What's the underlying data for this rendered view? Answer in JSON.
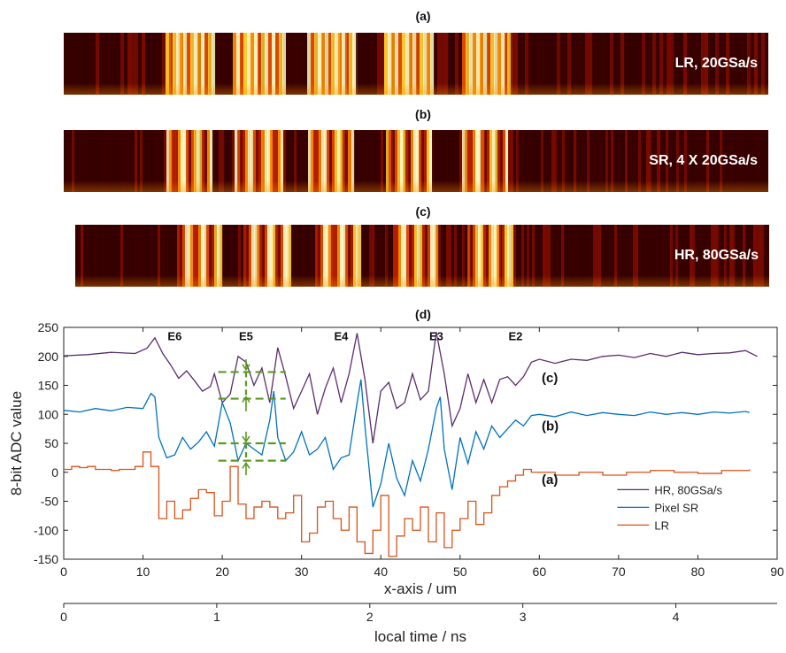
{
  "panels": [
    {
      "label": "(a)",
      "text": "LR, 20GSa/s",
      "blocky": true
    },
    {
      "label": "(b)",
      "text": "SR, 4 X 20GSa/s",
      "blocky": false
    },
    {
      "label": "(c)",
      "text": "HR, 80GSa/s",
      "blocky": false
    }
  ],
  "panel_d_label": "(d)",
  "colors": {
    "hr": "#5b2c6f",
    "sr": "#0072bd",
    "lr": "#d95319",
    "annotation": "#5a9a1e"
  },
  "chart_data": {
    "type": "line",
    "xlabel": "x-axis / um",
    "ylabel": "8-bit ADC value",
    "xlim": [
      0,
      90
    ],
    "ylim": [
      -150,
      250
    ],
    "xticks": [
      "0",
      "10",
      "20",
      "30",
      "40",
      "50",
      "60",
      "70",
      "80",
      "90"
    ],
    "yticks": [
      "-150",
      "-100",
      "-50",
      "0",
      "50",
      "100",
      "150",
      "200",
      "250"
    ],
    "secondary_axis": {
      "label": "local time / ns",
      "ticks": [
        "0",
        "1",
        "2",
        "3",
        "4"
      ]
    },
    "region_labels": [
      "E6",
      "E5",
      "E4",
      "E3",
      "E2"
    ],
    "curve_labels": [
      "(c)",
      "(b)",
      "(a)"
    ],
    "legend_position": "bottom-right",
    "series": [
      {
        "name": "HR, 80GSa/s",
        "points": [
          [
            0,
            201
          ],
          [
            3,
            203
          ],
          [
            6,
            207
          ],
          [
            9,
            205
          ],
          [
            10.5,
            214
          ],
          [
            11.5,
            232
          ],
          [
            12.5,
            205
          ],
          [
            13.5,
            185
          ],
          [
            14.5,
            162
          ],
          [
            15.5,
            175
          ],
          [
            16.5,
            158
          ],
          [
            17.5,
            140
          ],
          [
            18.5,
            148
          ],
          [
            19,
            170
          ],
          [
            20,
            120
          ],
          [
            21,
            135
          ],
          [
            22,
            200
          ],
          [
            23,
            190
          ],
          [
            24,
            150
          ],
          [
            25,
            180
          ],
          [
            26,
            120
          ],
          [
            27,
            215
          ],
          [
            28,
            165
          ],
          [
            29,
            110
          ],
          [
            30,
            140
          ],
          [
            31,
            170
          ],
          [
            32,
            100
          ],
          [
            33,
            145
          ],
          [
            34,
            180
          ],
          [
            35,
            120
          ],
          [
            36,
            170
          ],
          [
            37,
            240
          ],
          [
            38,
            160
          ],
          [
            39,
            50
          ],
          [
            40,
            140
          ],
          [
            41,
            155
          ],
          [
            42,
            110
          ],
          [
            43,
            120
          ],
          [
            44,
            170
          ],
          [
            45,
            125
          ],
          [
            46,
            140
          ],
          [
            47,
            242
          ],
          [
            48,
            170
          ],
          [
            49,
            80
          ],
          [
            50,
            110
          ],
          [
            51,
            170
          ],
          [
            52,
            120
          ],
          [
            53,
            160
          ],
          [
            54,
            120
          ],
          [
            55,
            160
          ],
          [
            56,
            165
          ],
          [
            57,
            150
          ],
          [
            58,
            165
          ],
          [
            59,
            190
          ],
          [
            60,
            195
          ],
          [
            62,
            188
          ],
          [
            64,
            195
          ],
          [
            66,
            193
          ],
          [
            68,
            200
          ],
          [
            70,
            202
          ],
          [
            72,
            198
          ],
          [
            74,
            205
          ],
          [
            76,
            200
          ],
          [
            78,
            207
          ],
          [
            80,
            203
          ],
          [
            82,
            205
          ],
          [
            84,
            206
          ],
          [
            86,
            210
          ],
          [
            87.5,
            200
          ]
        ]
      },
      {
        "name": "Pixel SR",
        "points": [
          [
            0,
            107
          ],
          [
            2,
            104
          ],
          [
            4,
            110
          ],
          [
            6,
            106
          ],
          [
            8,
            112
          ],
          [
            10,
            110
          ],
          [
            11,
            136
          ],
          [
            11.5,
            130
          ],
          [
            12,
            60
          ],
          [
            13,
            25
          ],
          [
            14,
            30
          ],
          [
            15,
            60
          ],
          [
            16,
            40
          ],
          [
            17,
            52
          ],
          [
            18,
            70
          ],
          [
            19,
            45
          ],
          [
            20,
            120
          ],
          [
            21,
            85
          ],
          [
            22,
            20
          ],
          [
            23,
            50
          ],
          [
            24,
            40
          ],
          [
            25,
            30
          ],
          [
            26,
            90
          ],
          [
            26.5,
            140
          ],
          [
            27,
            60
          ],
          [
            28,
            20
          ],
          [
            29,
            35
          ],
          [
            30,
            70
          ],
          [
            31,
            30
          ],
          [
            32,
            40
          ],
          [
            33,
            60
          ],
          [
            34,
            5
          ],
          [
            35,
            25
          ],
          [
            36,
            30
          ],
          [
            37,
            120
          ],
          [
            37.5,
            160
          ],
          [
            38,
            80
          ],
          [
            39,
            -60
          ],
          [
            40,
            -20
          ],
          [
            41,
            50
          ],
          [
            42,
            -10
          ],
          [
            43,
            -40
          ],
          [
            44,
            20
          ],
          [
            45,
            -15
          ],
          [
            46,
            40
          ],
          [
            47,
            110
          ],
          [
            47.5,
            130
          ],
          [
            48,
            40
          ],
          [
            49,
            -30
          ],
          [
            50,
            60
          ],
          [
            51,
            15
          ],
          [
            52,
            70
          ],
          [
            53,
            40
          ],
          [
            54,
            80
          ],
          [
            55,
            60
          ],
          [
            56,
            75
          ],
          [
            57,
            90
          ],
          [
            58,
            80
          ],
          [
            59,
            98
          ],
          [
            60,
            100
          ],
          [
            62,
            96
          ],
          [
            64,
            104
          ],
          [
            66,
            98
          ],
          [
            68,
            103
          ],
          [
            70,
            100
          ],
          [
            72,
            98
          ],
          [
            74,
            104
          ],
          [
            76,
            100
          ],
          [
            78,
            103
          ],
          [
            80,
            100
          ],
          [
            82,
            104
          ],
          [
            84,
            102
          ],
          [
            86,
            105
          ],
          [
            86.5,
            103
          ]
        ]
      },
      {
        "name": "LR",
        "points": [
          [
            0,
            5
          ],
          [
            1,
            10
          ],
          [
            2,
            8
          ],
          [
            3,
            10
          ],
          [
            4,
            5
          ],
          [
            5,
            5
          ],
          [
            6,
            3
          ],
          [
            7,
            5
          ],
          [
            8,
            5
          ],
          [
            9,
            10
          ],
          [
            10,
            35
          ],
          [
            11,
            10
          ],
          [
            12,
            -80
          ],
          [
            13,
            -50
          ],
          [
            14,
            -80
          ],
          [
            15,
            -65
          ],
          [
            16,
            -45
          ],
          [
            17,
            -30
          ],
          [
            18,
            -35
          ],
          [
            19,
            -75
          ],
          [
            20,
            -50
          ],
          [
            21,
            10
          ],
          [
            22,
            -55
          ],
          [
            23,
            -80
          ],
          [
            24,
            -60
          ],
          [
            25,
            -50
          ],
          [
            26,
            -60
          ],
          [
            27,
            -80
          ],
          [
            28,
            -70
          ],
          [
            29,
            -40
          ],
          [
            30,
            -120
          ],
          [
            31,
            -105
          ],
          [
            32,
            -60
          ],
          [
            33,
            -50
          ],
          [
            34,
            -80
          ],
          [
            35,
            -100
          ],
          [
            36,
            -60
          ],
          [
            37,
            -120
          ],
          [
            38,
            -140
          ],
          [
            39,
            -100
          ],
          [
            40,
            -40
          ],
          [
            41,
            -145
          ],
          [
            42,
            -110
          ],
          [
            43,
            -80
          ],
          [
            44,
            -100
          ],
          [
            45,
            -60
          ],
          [
            46,
            -120
          ],
          [
            47,
            -70
          ],
          [
            48,
            -130
          ],
          [
            49,
            -100
          ],
          [
            50,
            -80
          ],
          [
            51,
            -50
          ],
          [
            52,
            -90
          ],
          [
            53,
            -70
          ],
          [
            54,
            -40
          ],
          [
            55,
            -25
          ],
          [
            56,
            -15
          ],
          [
            57,
            -5
          ],
          [
            58,
            5
          ],
          [
            59,
            0
          ],
          [
            62,
            -5
          ],
          [
            65,
            0
          ],
          [
            68,
            -5
          ],
          [
            71,
            0
          ],
          [
            74,
            3
          ],
          [
            77,
            0
          ],
          [
            80,
            -2
          ],
          [
            83,
            3
          ],
          [
            85,
            3
          ],
          [
            86.5,
            5
          ]
        ]
      }
    ]
  }
}
